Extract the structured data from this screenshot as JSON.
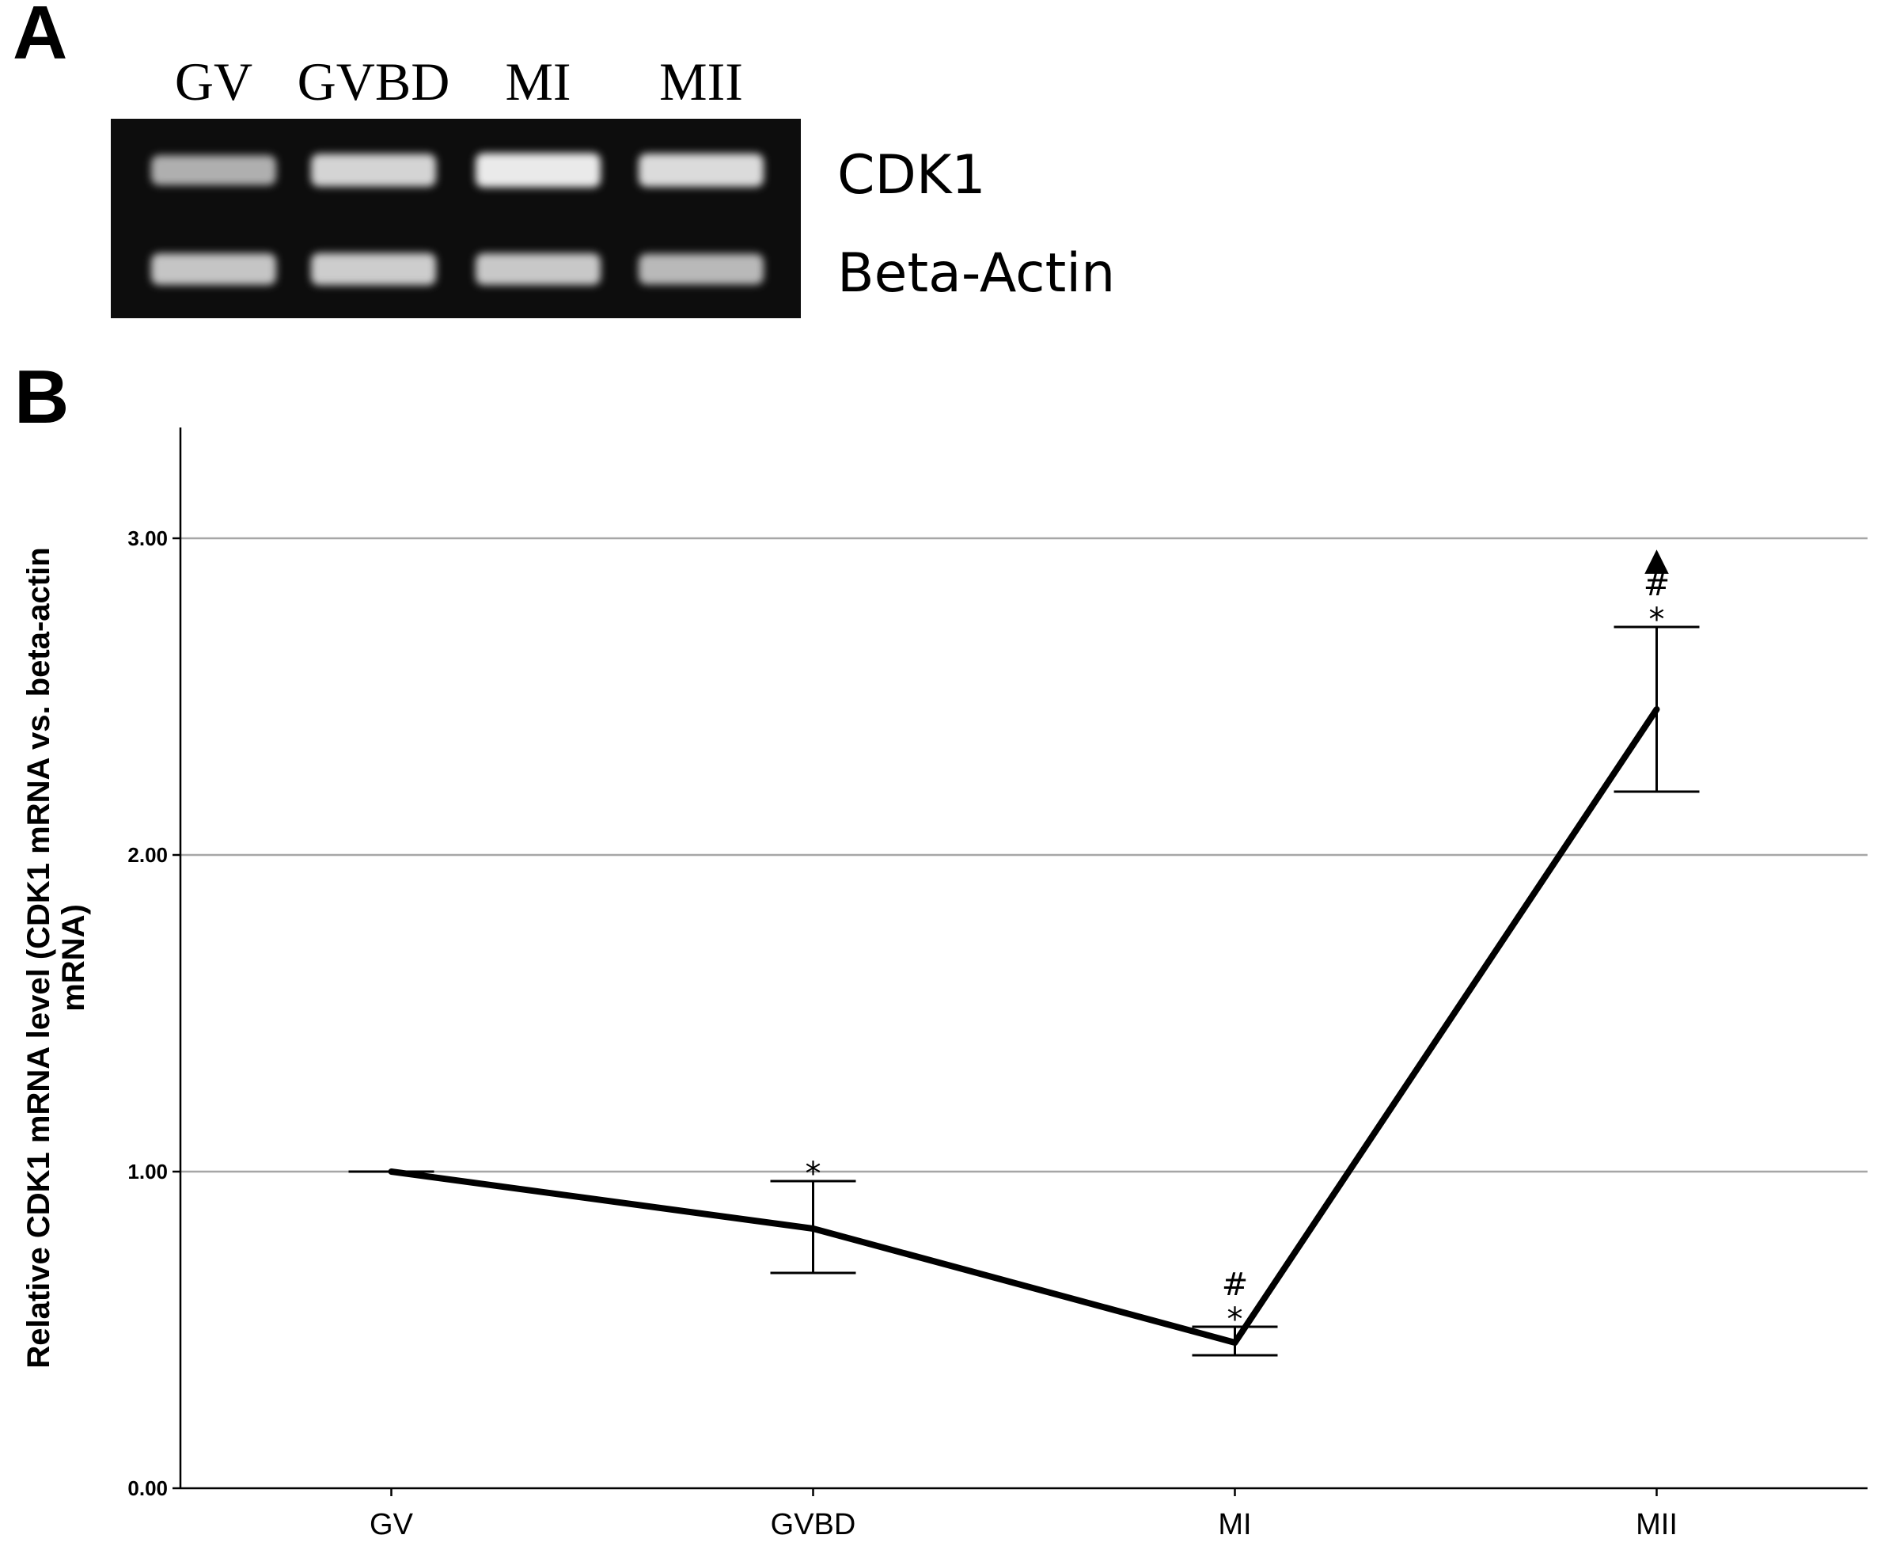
{
  "panel_a": {
    "letter": "A",
    "lanes": [
      "GV",
      "GVBD",
      "MI",
      "MII"
    ],
    "rows": [
      {
        "gene": "CDK1",
        "band_intensity": [
          0.55,
          0.8,
          0.95,
          0.85
        ]
      },
      {
        "gene": "Beta-Actin",
        "band_intensity": [
          0.7,
          0.75,
          0.72,
          0.62
        ]
      }
    ]
  },
  "panel_b": {
    "letter": "B"
  },
  "chart_data": {
    "type": "line",
    "categories": [
      "GV",
      "GVBD",
      "MI",
      "MII"
    ],
    "series": [
      {
        "values": [
          1.0,
          0.82,
          0.46,
          2.46
        ],
        "error_low": [
          1.0,
          0.68,
          0.42,
          2.2
        ],
        "error_high": [
          1.0,
          0.97,
          0.51,
          2.72
        ]
      }
    ],
    "significance": [
      [],
      [
        "*"
      ],
      [
        "*",
        "#"
      ],
      [
        "*",
        "#",
        "▲"
      ]
    ],
    "ylabel_lines": [
      "Relative CDK1 mRNA level (CDK1 mRNA vs. beta-actin",
      "mRNA)"
    ],
    "xlabel": "",
    "ylim": [
      0,
      3.35
    ],
    "yticks": [
      0,
      1,
      2,
      3
    ],
    "ytick_labels": [
      "0.00",
      "1.00",
      "2.00",
      "3.00"
    ],
    "grid": "horizontal",
    "colors": {
      "line": "#000000",
      "grid": "#a6a6a6",
      "gel": "#0d0d0d",
      "band": "#f2f2f2"
    }
  }
}
